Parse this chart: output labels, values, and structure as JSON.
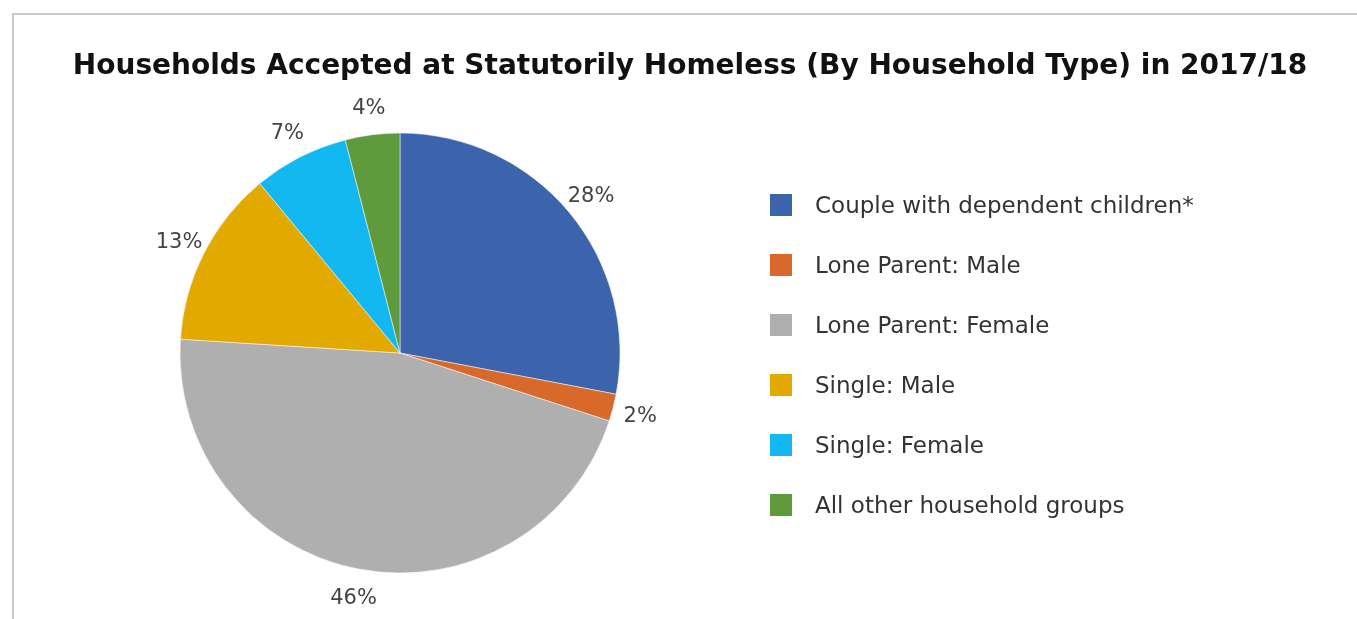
{
  "chart_data": {
    "type": "pie",
    "title": "Households Accepted at Statutorily Homeless (By Household Type) in 2017/18",
    "categories": [
      "Couple with dependent children*",
      "Lone Parent: Male",
      "Lone Parent: Female",
      "Single: Male",
      "Single: Female",
      "All other household groups"
    ],
    "values": [
      28,
      2,
      46,
      13,
      7,
      4
    ],
    "colors": [
      "#3c64ad",
      "#d9692a",
      "#afafaf",
      "#e2a900",
      "#12b8ef",
      "#5f9a3c"
    ],
    "value_labels": [
      "28%",
      "2%",
      "46%",
      "13%",
      "7%",
      "4%"
    ],
    "legend": "right"
  }
}
